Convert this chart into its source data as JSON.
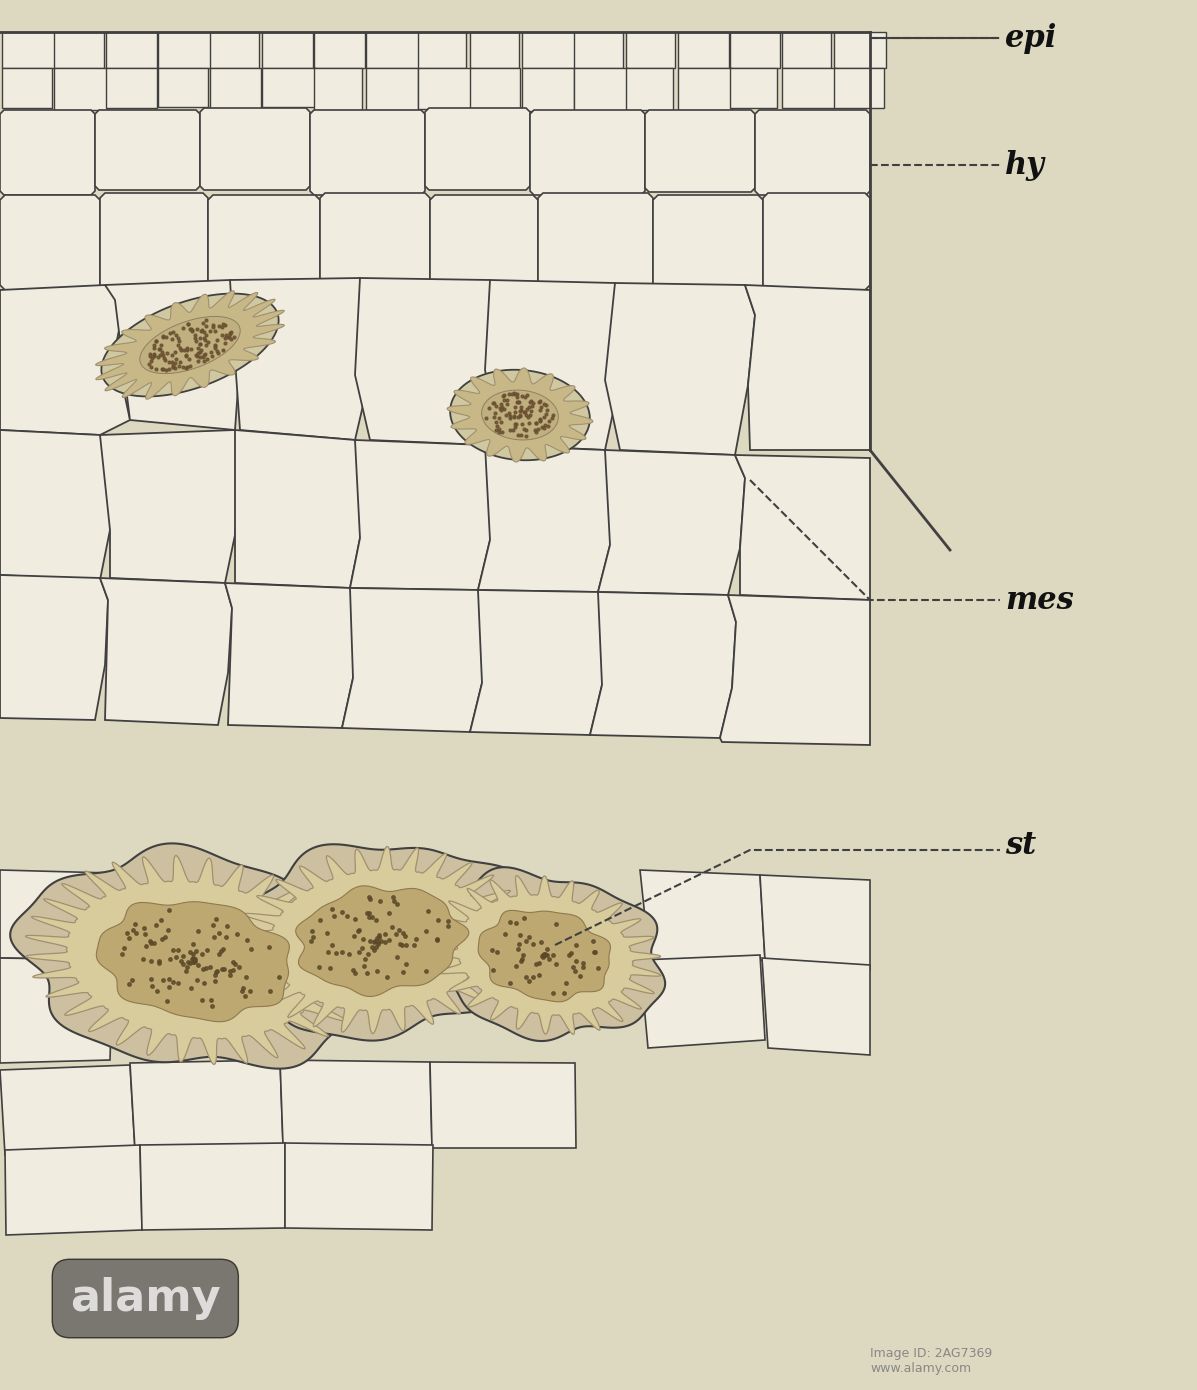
{
  "background_color": "#ddd8c0",
  "line_color": "#404040",
  "cell_fill": "#e8e4d0",
  "cell_fill2": "#f0ece0",
  "stone_outer": "#c8b890",
  "stone_wall": "#d8caa8",
  "stone_inner": "#c0aa80",
  "stone_dots": "#6a5a3a",
  "epi_label": "epi",
  "hy_label": "hy",
  "mes_label": "mes",
  "st_label": "st",
  "label_color": "#111111",
  "label_fontsize": 18,
  "fig_width": 11.97,
  "fig_height": 13.9,
  "dpi": 100
}
